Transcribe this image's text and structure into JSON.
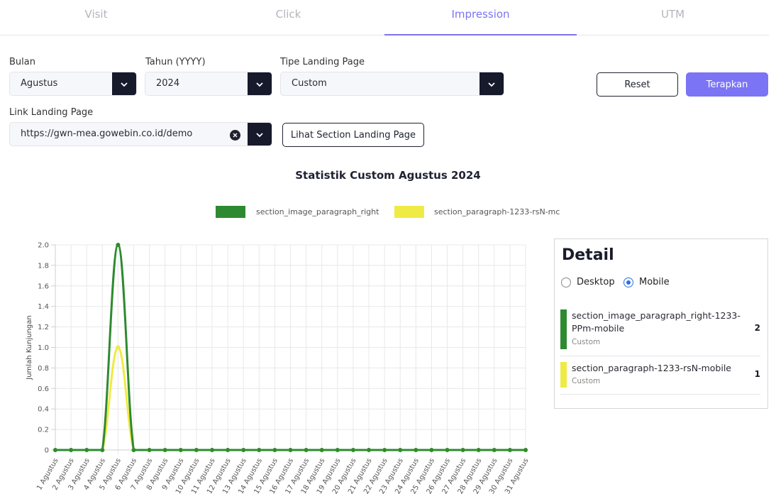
{
  "tabs": [
    {
      "label": "Visit",
      "active": false
    },
    {
      "label": "Click",
      "active": false
    },
    {
      "label": "Impression",
      "active": true
    },
    {
      "label": "UTM",
      "active": false
    }
  ],
  "filters": {
    "bulan_label": "Bulan",
    "bulan_value": "Agustus",
    "tahun_label": "Tahun (YYYY)",
    "tahun_value": "2024",
    "tipe_label": "Tipe Landing Page",
    "tipe_value": "Custom",
    "link_label": "Link Landing Page",
    "link_value": "https://gwn-mea.gowebin.co.id/demo",
    "reset_label": "Reset",
    "apply_label": "Terapkan",
    "view_sections_label": "Lihat Section Landing Page"
  },
  "colors": {
    "accent": "#7b74f5",
    "series1": "#2e8a30",
    "series2": "#f0ea44",
    "dark": "#161a2b"
  },
  "chart_data": {
    "type": "line",
    "title": "Statistik Custom Agustus 2024",
    "ylabel": "Jumlah Kunjungan",
    "xlabel": "",
    "ylim": [
      0,
      2.0
    ],
    "yticks": [
      "0",
      "0.2",
      "0.4",
      "0.6",
      "0.8",
      "1.0",
      "1.2",
      "1.4",
      "1.6",
      "1.8",
      "2.0"
    ],
    "grid": true,
    "legend": "top",
    "legend_labels": [
      "section_image_paragraph_right",
      "section_paragraph-1233-rsN-mc"
    ],
    "categories": [
      "1 Agustus",
      "2 Agustus",
      "3 Agustus",
      "4 Agustus",
      "5 Agustus",
      "6 Agustus",
      "7 Agustus",
      "8 Agustus",
      "9 Agustus",
      "10 Agustus",
      "11 Agustus",
      "12 Agustus",
      "13 Agustus",
      "14 Agustus",
      "15 Agustus",
      "16 Agustus",
      "17 Agustus",
      "18 Agustus",
      "19 Agustus",
      "20 Agustus",
      "21 Agustus",
      "22 Agustus",
      "23 Agustus",
      "24 Agustus",
      "25 Agustus",
      "26 Agustus",
      "27 Agustus",
      "28 Agustus",
      "29 Agustus",
      "30 Agustus",
      "31 Agustus"
    ],
    "series": [
      {
        "name": "section_image_paragraph_right-1233-PPm-mobile",
        "color": "#2e8a30",
        "values": [
          0,
          0,
          0,
          0,
          2,
          0,
          0,
          0,
          0,
          0,
          0,
          0,
          0,
          0,
          0,
          0,
          0,
          0,
          0,
          0,
          0,
          0,
          0,
          0,
          0,
          0,
          0,
          0,
          0,
          0,
          0
        ]
      },
      {
        "name": "section_paragraph-1233-rsN-mobile",
        "color": "#f0ea44",
        "values": [
          0,
          0,
          0,
          0,
          1,
          0,
          0,
          0,
          0,
          0,
          0,
          0,
          0,
          0,
          0,
          0,
          0,
          0,
          0,
          0,
          0,
          0,
          0,
          0,
          0,
          0,
          0,
          0,
          0,
          0,
          0
        ]
      }
    ]
  },
  "detail": {
    "title": "Detail",
    "radio_desktop": "Desktop",
    "radio_mobile": "Mobile",
    "selected": "Mobile",
    "items": [
      {
        "name": "section_image_paragraph_right-1233-PPm-mobile",
        "type": "Custom",
        "count": "2",
        "color": "#2e8a30"
      },
      {
        "name": "section_paragraph-1233-rsN-mobile",
        "type": "Custom",
        "count": "1",
        "color": "#f0ea44"
      }
    ]
  }
}
